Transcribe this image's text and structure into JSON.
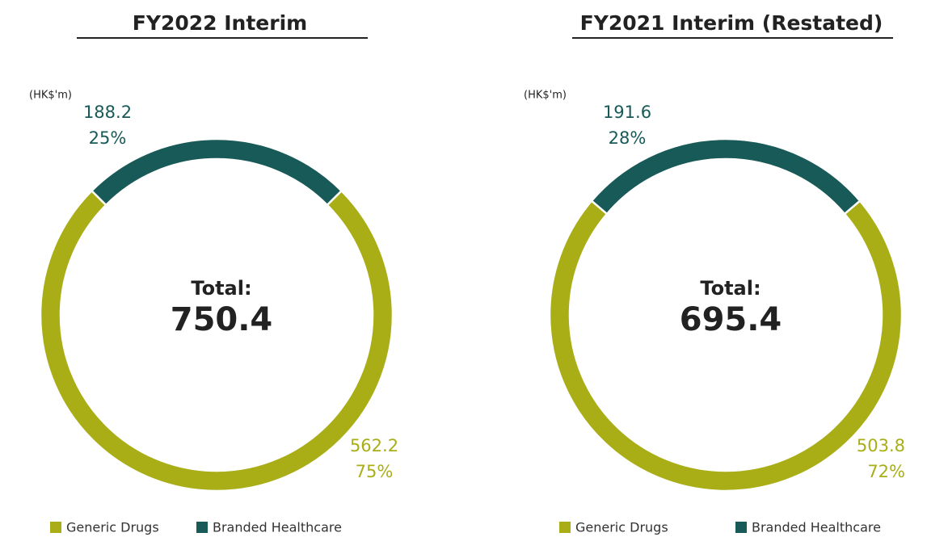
{
  "chart_data": [
    {
      "type": "pie",
      "title": "FY2022 Interim",
      "unit": "(HK$'m)",
      "total_label": "Total:",
      "total": 750.4,
      "categories": [
        "Generic Drugs",
        "Branded Healthcare"
      ],
      "colors": [
        "#a9ae17",
        "#185a57"
      ],
      "values": [
        562.2,
        188.2
      ],
      "percentages": [
        75,
        25
      ],
      "percentage_labels": [
        "75%",
        "25%"
      ]
    },
    {
      "type": "pie",
      "title": "FY2021 Interim (Restated)",
      "unit": "(HK$'m)",
      "total_label": "Total:",
      "total": 695.4,
      "categories": [
        "Generic Drugs",
        "Branded Healthcare"
      ],
      "colors": [
        "#a9ae17",
        "#185a57"
      ],
      "values": [
        503.8,
        191.6
      ],
      "percentages": [
        72,
        28
      ],
      "percentage_labels": [
        "72%",
        "28%"
      ]
    }
  ]
}
